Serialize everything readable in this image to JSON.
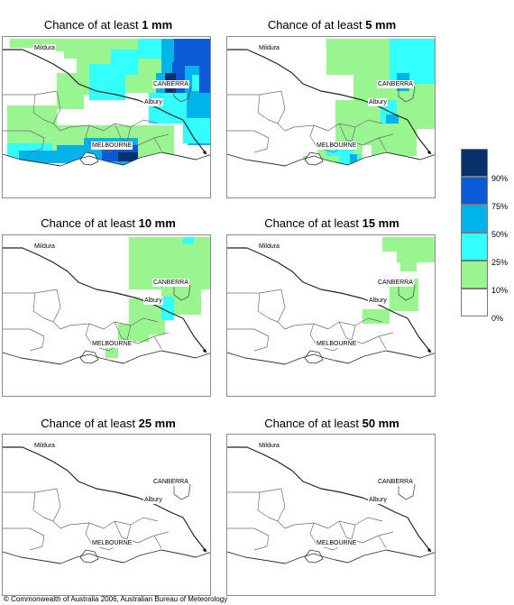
{
  "panels": [
    {
      "title_prefix": "Chance of at least ",
      "title_value": "1 mm"
    },
    {
      "title_prefix": "Chance of at least ",
      "title_value": "5 mm"
    },
    {
      "title_prefix": "Chance of at least ",
      "title_value": "10 mm"
    },
    {
      "title_prefix": "Chance of at least ",
      "title_value": "15 mm"
    },
    {
      "title_prefix": "Chance of at least ",
      "title_value": "25 mm"
    },
    {
      "title_prefix": "Chance of at least ",
      "title_value": "50 mm"
    }
  ],
  "places": {
    "mildura": "Mildura",
    "canberra": "CANBERRA",
    "albury": "Albury",
    "melbourne": "MELBOURNE"
  },
  "legend": {
    "labels": [
      "90%",
      "75%",
      "50%",
      "25%",
      "10%",
      "0%"
    ],
    "colors": [
      "#08306b",
      "#0a5ad7",
      "#00b3ea",
      "#33ffff",
      "#99f590",
      "#ffffff"
    ]
  },
  "copyright": "© Commonwealth of Australia 2006, Australian Bureau of Meteorology"
}
